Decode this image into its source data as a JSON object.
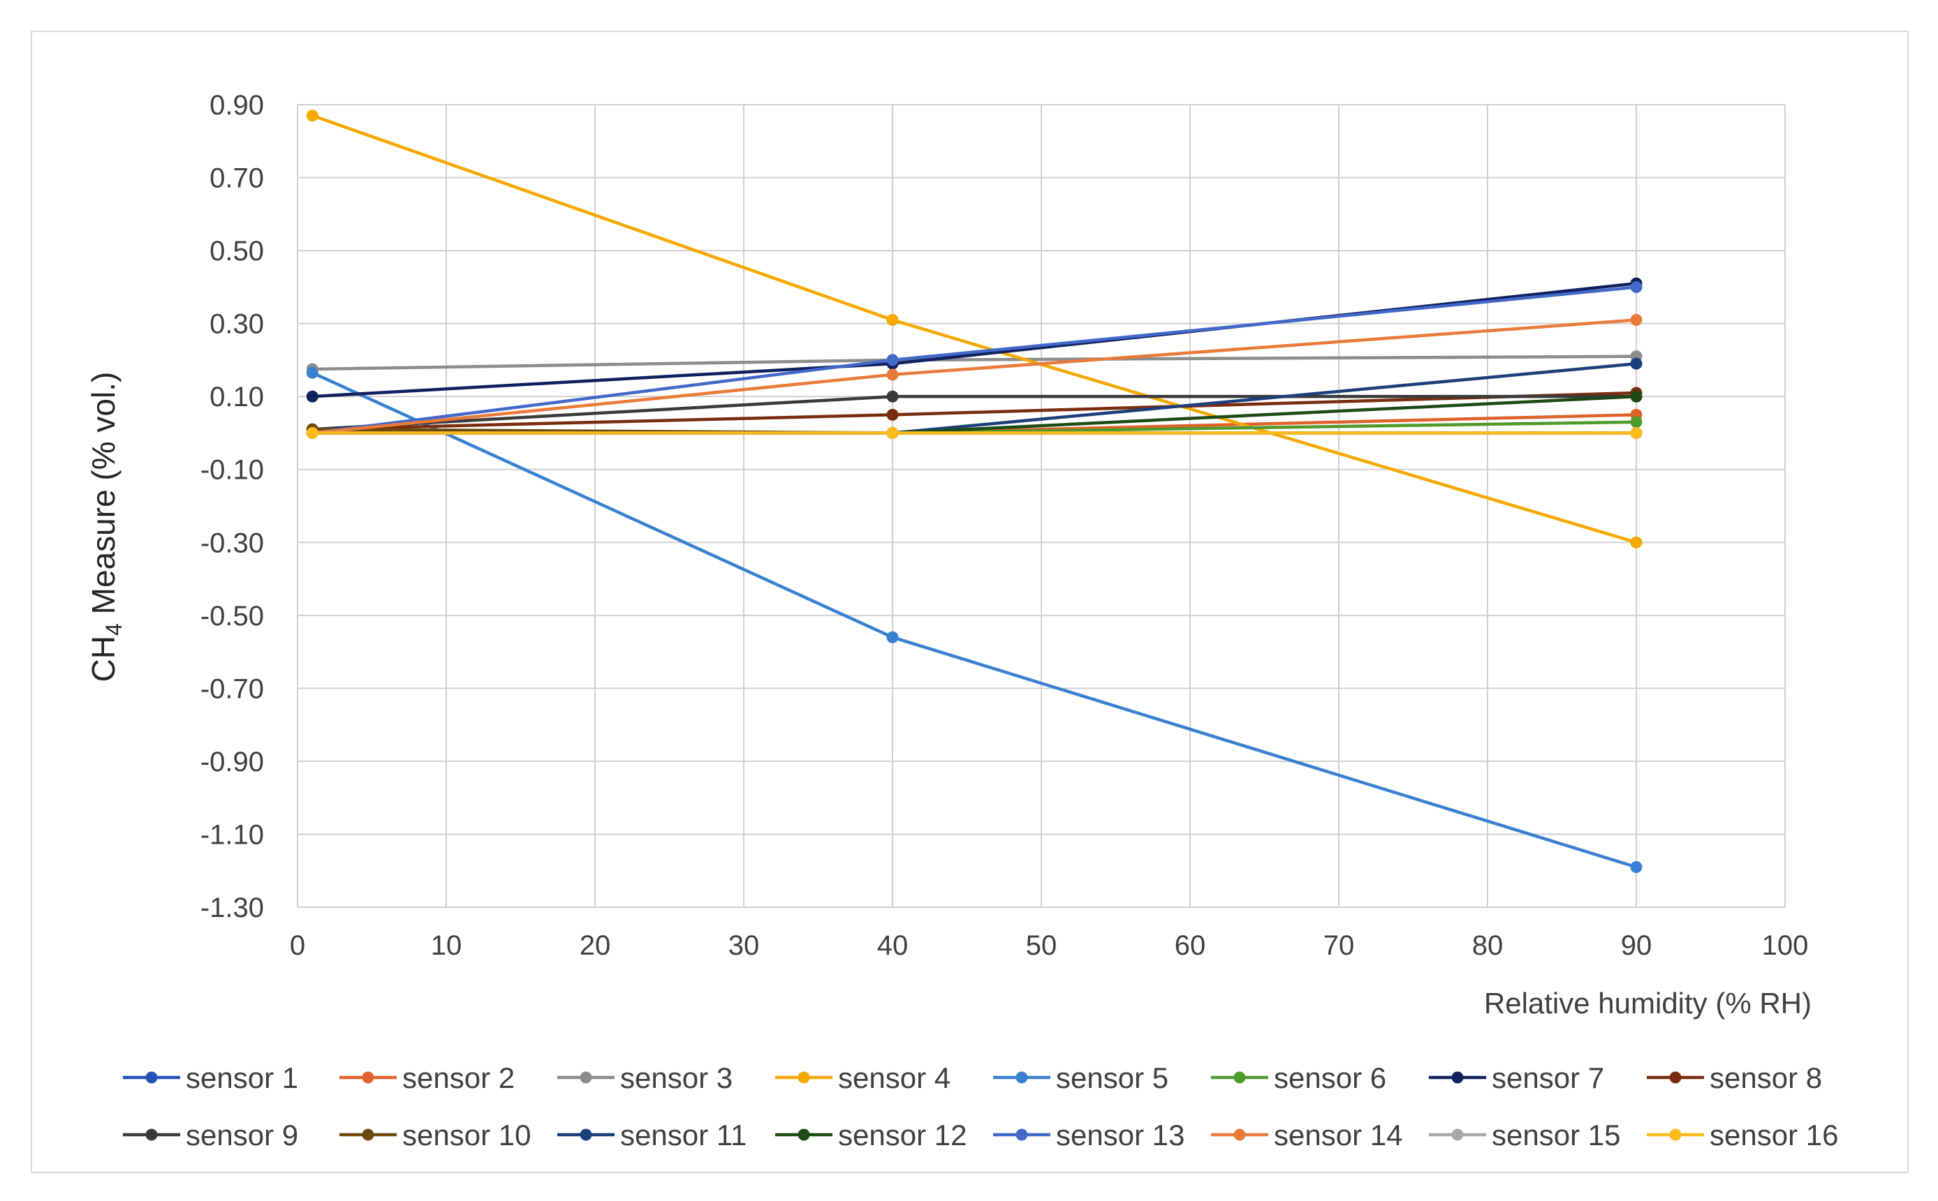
{
  "chart_data": {
    "type": "line",
    "title": "",
    "xlabel": "Relative humidity (% RH)",
    "ylabel": {
      "prefix": "CH",
      "subscript": "4",
      "suffix": " Measure (% vol.)"
    },
    "xlim": [
      0,
      100
    ],
    "ylim": [
      -1.3,
      0.9
    ],
    "x_ticks": [
      0,
      10,
      20,
      30,
      40,
      50,
      60,
      70,
      80,
      90,
      100
    ],
    "x_tick_labels": [
      "0",
      "10",
      "20",
      "30",
      "40",
      "50",
      "60",
      "70",
      "80",
      "90",
      "100"
    ],
    "y_ticks": [
      0.9,
      0.7,
      0.5,
      0.3,
      0.1,
      -0.1,
      -0.3,
      -0.5,
      -0.7,
      -0.9,
      -1.1,
      -1.3
    ],
    "y_tick_labels": [
      "0.90",
      "0.70",
      "0.50",
      "0.30",
      "0.10",
      "-0.10",
      "-0.30",
      "-0.50",
      "-0.70",
      "-0.90",
      "-1.10",
      "-1.30"
    ],
    "grid": true,
    "legend_position": "bottom",
    "x": [
      1,
      40,
      90
    ],
    "series": [
      {
        "name": "sensor 1",
        "color": "#2453b8",
        "values": [
          0.0,
          0.0,
          0.0
        ]
      },
      {
        "name": "sensor 2",
        "color": "#e0622a",
        "values": [
          0.0,
          0.0,
          0.05
        ]
      },
      {
        "name": "sensor 3",
        "color": "#8c8c8c",
        "values": [
          0.175,
          0.2,
          0.21
        ]
      },
      {
        "name": "sensor 4",
        "color": "#f5a800",
        "values": [
          0.87,
          0.31,
          -0.3
        ]
      },
      {
        "name": "sensor 5",
        "color": "#3a80d0",
        "values": [
          0.165,
          -0.56,
          -1.19
        ]
      },
      {
        "name": "sensor 6",
        "color": "#4f9a2c",
        "values": [
          0.0,
          0.0,
          0.03
        ]
      },
      {
        "name": "sensor 7",
        "color": "#101f5e",
        "values": [
          0.1,
          0.19,
          0.41
        ]
      },
      {
        "name": "sensor 8",
        "color": "#7a2d0e",
        "values": [
          0.01,
          0.05,
          0.11
        ]
      },
      {
        "name": "sensor 9",
        "color": "#3a3a3a",
        "values": [
          0.01,
          0.1,
          0.1
        ]
      },
      {
        "name": "sensor 10",
        "color": "#6b4a0c",
        "values": [
          0.01,
          0.0,
          0.0
        ]
      },
      {
        "name": "sensor 11",
        "color": "#1b3f7a",
        "values": [
          0.0,
          0.0,
          0.19
        ]
      },
      {
        "name": "sensor 12",
        "color": "#1e4a16",
        "values": [
          0.0,
          0.0,
          0.1
        ]
      },
      {
        "name": "sensor 13",
        "color": "#4268c9",
        "values": [
          0.0,
          0.2,
          0.4
        ]
      },
      {
        "name": "sensor 14",
        "color": "#ea7a3a",
        "values": [
          0.0,
          0.16,
          0.31
        ]
      },
      {
        "name": "sensor 15",
        "color": "#a8a8a8",
        "values": [
          0.0,
          0.0,
          0.0
        ]
      },
      {
        "name": "sensor 16",
        "color": "#ffbb1a",
        "values": [
          0.0,
          0.0,
          0.0
        ]
      }
    ]
  }
}
